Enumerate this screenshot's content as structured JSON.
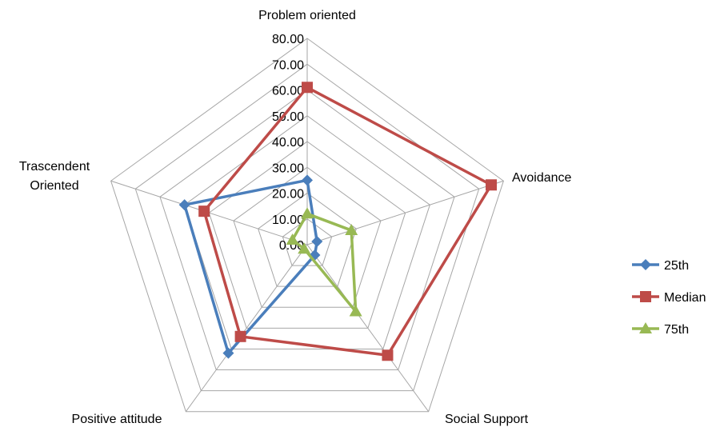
{
  "chart_data": {
    "type": "radar",
    "title": "",
    "axes": [
      "Problem oriented",
      "Avoidance",
      "Social Support",
      "Positive attitude",
      "Trascendent Oriented"
    ],
    "axis_label_lines": [
      [
        "Problem oriented"
      ],
      [
        "Avoidance"
      ],
      [
        "Social Support"
      ],
      [
        "Positive attitude"
      ],
      [
        "Trascendent",
        "Oriented"
      ]
    ],
    "rlim": [
      0,
      80
    ],
    "ticks": [
      "0.00",
      "10.00",
      "20.00",
      "30.00",
      "40.00",
      "50.00",
      "60.00",
      "70.00",
      "80.00"
    ],
    "tick_values": [
      0,
      10,
      20,
      30,
      40,
      50,
      60,
      70,
      80
    ],
    "grid": true,
    "legend_position": "right",
    "series": [
      {
        "name": "25th",
        "color": "#4a7ebb",
        "marker": "diamond",
        "values": [
          25,
          4,
          5,
          52,
          50
        ]
      },
      {
        "name": "Median",
        "color": "#be4b48",
        "marker": "square",
        "values": [
          61,
          75,
          53,
          44,
          42
        ]
      },
      {
        "name": "75th",
        "color": "#98b954",
        "marker": "triangle",
        "values": [
          12,
          18,
          32,
          2,
          6
        ]
      }
    ]
  }
}
